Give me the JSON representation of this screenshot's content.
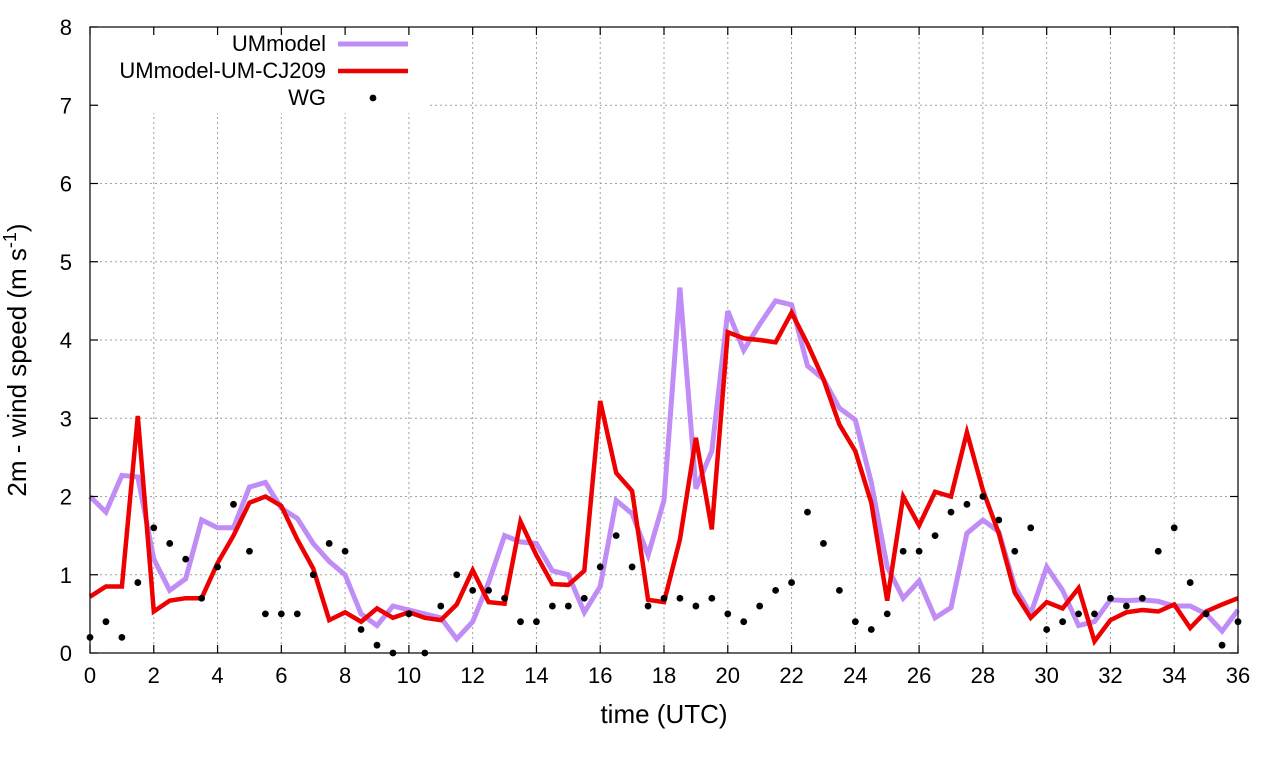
{
  "chart_data": {
    "type": "line",
    "title": "",
    "xlabel": "time (UTC)",
    "ylabel_main": "2m - wind speed  (m s",
    "ylabel_sup": "-1",
    "ylabel_close": ")",
    "xlim": [
      0,
      36
    ],
    "ylim": [
      0,
      8
    ],
    "xticks": [
      0,
      2,
      4,
      6,
      8,
      10,
      12,
      14,
      16,
      18,
      20,
      22,
      24,
      26,
      28,
      30,
      32,
      34,
      36
    ],
    "yticks": [
      0,
      1,
      2,
      3,
      4,
      5,
      6,
      7,
      8
    ],
    "grid": true,
    "legend_position": "top-left",
    "series": [
      {
        "name": "UMmodel",
        "style": "line",
        "color": "#c08cf5",
        "x": [
          0,
          0.5,
          1,
          1.5,
          2,
          2.5,
          3,
          3.5,
          4,
          4.5,
          5,
          5.5,
          6,
          6.5,
          7,
          7.5,
          8,
          8.5,
          9,
          9.5,
          10,
          10.5,
          11,
          11.5,
          12,
          12.5,
          13,
          13.5,
          14,
          14.5,
          15,
          15.5,
          16,
          16.5,
          17,
          17.5,
          18,
          18.5,
          19,
          19.5,
          20,
          20.5,
          21,
          21.5,
          22,
          22.5,
          23,
          23.5,
          24,
          24.5,
          25,
          25.5,
          26,
          26.5,
          27,
          27.5,
          28,
          28.5,
          29,
          29.5,
          30,
          30.5,
          31,
          31.5,
          32,
          32.5,
          33,
          33.5,
          34,
          34.5,
          35,
          35.5,
          36
        ],
        "values": [
          2.0,
          1.8,
          2.27,
          2.25,
          1.2,
          0.8,
          0.95,
          1.7,
          1.6,
          1.6,
          2.12,
          2.18,
          1.85,
          1.72,
          1.4,
          1.17,
          1.0,
          0.5,
          0.35,
          0.6,
          0.55,
          0.5,
          0.45,
          0.18,
          0.4,
          0.9,
          1.5,
          1.42,
          1.4,
          1.05,
          1.0,
          0.52,
          0.85,
          1.95,
          1.78,
          1.25,
          1.95,
          4.67,
          2.1,
          2.58,
          4.37,
          3.87,
          4.2,
          4.5,
          4.45,
          3.67,
          3.5,
          3.13,
          2.98,
          2.18,
          1.1,
          0.7,
          0.92,
          0.45,
          0.58,
          1.53,
          1.7,
          1.55,
          0.85,
          0.5,
          1.1,
          0.8,
          0.35,
          0.4,
          0.68,
          0.67,
          0.68,
          0.66,
          0.6,
          0.6,
          0.5,
          0.28,
          0.55
        ]
      },
      {
        "name": "UMmodel-UM-CJ209",
        "style": "line",
        "color": "#ee0000",
        "x": [
          0,
          0.5,
          1,
          1.5,
          2,
          2.5,
          3,
          3.5,
          4,
          4.5,
          5,
          5.5,
          6,
          6.5,
          7,
          7.5,
          8,
          8.5,
          9,
          9.5,
          10,
          10.5,
          11,
          11.5,
          12,
          12.5,
          13,
          13.5,
          14,
          14.5,
          15,
          15.5,
          16,
          16.5,
          17,
          17.5,
          18,
          18.5,
          19,
          19.5,
          20,
          20.5,
          21,
          21.5,
          22,
          22.5,
          23,
          23.5,
          24,
          24.5,
          25,
          25.5,
          26,
          26.5,
          27,
          27.5,
          28,
          28.5,
          29,
          29.5,
          30,
          30.5,
          31,
          31.5,
          32,
          32.5,
          33,
          33.5,
          34,
          34.5,
          35,
          35.5,
          36
        ],
        "values": [
          0.72,
          0.85,
          0.85,
          3.03,
          0.53,
          0.67,
          0.7,
          0.7,
          1.15,
          1.5,
          1.92,
          2.0,
          1.88,
          1.45,
          1.08,
          0.42,
          0.52,
          0.4,
          0.57,
          0.45,
          0.52,
          0.45,
          0.42,
          0.62,
          1.06,
          0.65,
          0.63,
          1.68,
          1.25,
          0.88,
          0.87,
          1.05,
          3.22,
          2.3,
          2.07,
          0.68,
          0.65,
          1.45,
          2.75,
          1.58,
          4.1,
          4.02,
          4.0,
          3.97,
          4.35,
          3.95,
          3.5,
          2.92,
          2.58,
          1.92,
          0.67,
          2.0,
          1.63,
          2.06,
          2.0,
          2.82,
          2.08,
          1.53,
          0.77,
          0.45,
          0.65,
          0.57,
          0.83,
          0.15,
          0.42,
          0.52,
          0.55,
          0.53,
          0.62,
          0.32,
          0.53,
          0.62,
          0.7
        ]
      },
      {
        "name": "WG",
        "style": "points",
        "color": "#000000",
        "x": [
          0,
          0.5,
          1,
          1.5,
          2,
          2.5,
          3,
          3.5,
          4,
          4.5,
          5,
          5.5,
          6,
          6.5,
          7,
          7.5,
          8,
          8.5,
          9,
          9.5,
          10,
          10.5,
          11,
          11.5,
          12,
          12.5,
          13,
          13.5,
          14,
          14.5,
          15,
          15.5,
          16,
          16.5,
          17,
          17.5,
          18,
          18.5,
          19,
          19.5,
          20,
          20.5,
          21,
          21.5,
          22,
          22.5,
          23,
          23.5,
          24,
          24.5,
          25,
          25.5,
          26,
          26.5,
          27,
          27.5,
          28,
          28.5,
          29,
          29.5,
          30,
          30.5,
          31,
          31.5,
          32,
          32.5,
          33,
          33.5,
          34,
          34.5,
          35,
          35.5,
          36
        ],
        "values": [
          0.2,
          0.4,
          0.2,
          0.9,
          1.6,
          1.4,
          1.2,
          0.7,
          1.1,
          1.9,
          1.3,
          0.5,
          0.5,
          0.5,
          1.0,
          1.4,
          1.3,
          0.3,
          0.1,
          0.0,
          0.5,
          0.0,
          0.6,
          1.0,
          0.8,
          0.8,
          0.7,
          0.4,
          0.4,
          0.6,
          0.6,
          0.7,
          1.1,
          1.5,
          1.1,
          0.6,
          0.7,
          0.7,
          0.6,
          0.7,
          0.5,
          0.4,
          0.6,
          0.8,
          0.9,
          1.8,
          1.4,
          0.8,
          0.4,
          0.3,
          0.5,
          1.3,
          1.3,
          1.5,
          1.8,
          1.9,
          2.0,
          1.7,
          1.3,
          1.6,
          0.3,
          0.4,
          0.5,
          0.5,
          0.7,
          0.6,
          0.7,
          1.3,
          1.6,
          0.9,
          0.5,
          0.1,
          0.4
        ]
      }
    ]
  }
}
